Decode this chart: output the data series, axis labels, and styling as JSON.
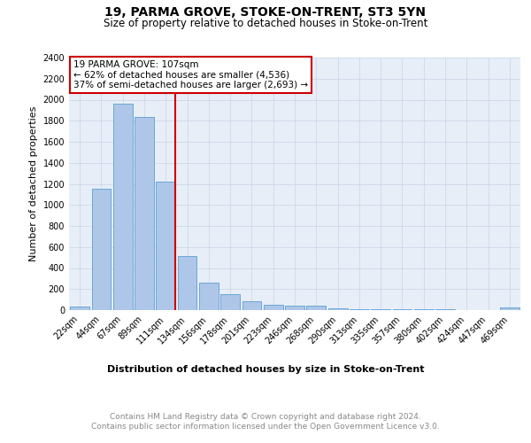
{
  "title": "19, PARMA GROVE, STOKE-ON-TRENT, ST3 5YN",
  "subtitle": "Size of property relative to detached houses in Stoke-on-Trent",
  "xlabel": "Distribution of detached houses by size in Stoke-on-Trent",
  "ylabel": "Number of detached properties",
  "categories": [
    "22sqm",
    "44sqm",
    "67sqm",
    "89sqm",
    "111sqm",
    "134sqm",
    "156sqm",
    "178sqm",
    "201sqm",
    "223sqm",
    "246sqm",
    "268sqm",
    "290sqm",
    "313sqm",
    "335sqm",
    "357sqm",
    "380sqm",
    "402sqm",
    "424sqm",
    "447sqm",
    "469sqm"
  ],
  "values": [
    30,
    1150,
    1960,
    1840,
    1220,
    510,
    265,
    155,
    85,
    50,
    40,
    38,
    18,
    12,
    8,
    5,
    5,
    5,
    3,
    3,
    22
  ],
  "bar_color": "#aec6e8",
  "bar_edge_color": "#5a9fd4",
  "property_line_label": "19 PARMA GROVE: 107sqm",
  "annotation_line1": "← 62% of detached houses are smaller (4,536)",
  "annotation_line2": "37% of semi-detached houses are larger (2,693) →",
  "annotation_box_color": "#ffffff",
  "annotation_box_edge": "#cc0000",
  "vline_color": "#cc0000",
  "vline_x": 4.43,
  "ylim": [
    0,
    2400
  ],
  "yticks": [
    0,
    200,
    400,
    600,
    800,
    1000,
    1200,
    1400,
    1600,
    1800,
    2000,
    2200,
    2400
  ],
  "grid_color": "#c8d4e8",
  "bg_color": "#e8eef7",
  "footer1": "Contains HM Land Registry data © Crown copyright and database right 2024.",
  "footer2": "Contains public sector information licensed under the Open Government Licence v3.0.",
  "title_fontsize": 10,
  "subtitle_fontsize": 8.5,
  "xlabel_fontsize": 8,
  "ylabel_fontsize": 8,
  "tick_fontsize": 7,
  "footer_fontsize": 6.5,
  "annotation_fontsize": 7.5
}
